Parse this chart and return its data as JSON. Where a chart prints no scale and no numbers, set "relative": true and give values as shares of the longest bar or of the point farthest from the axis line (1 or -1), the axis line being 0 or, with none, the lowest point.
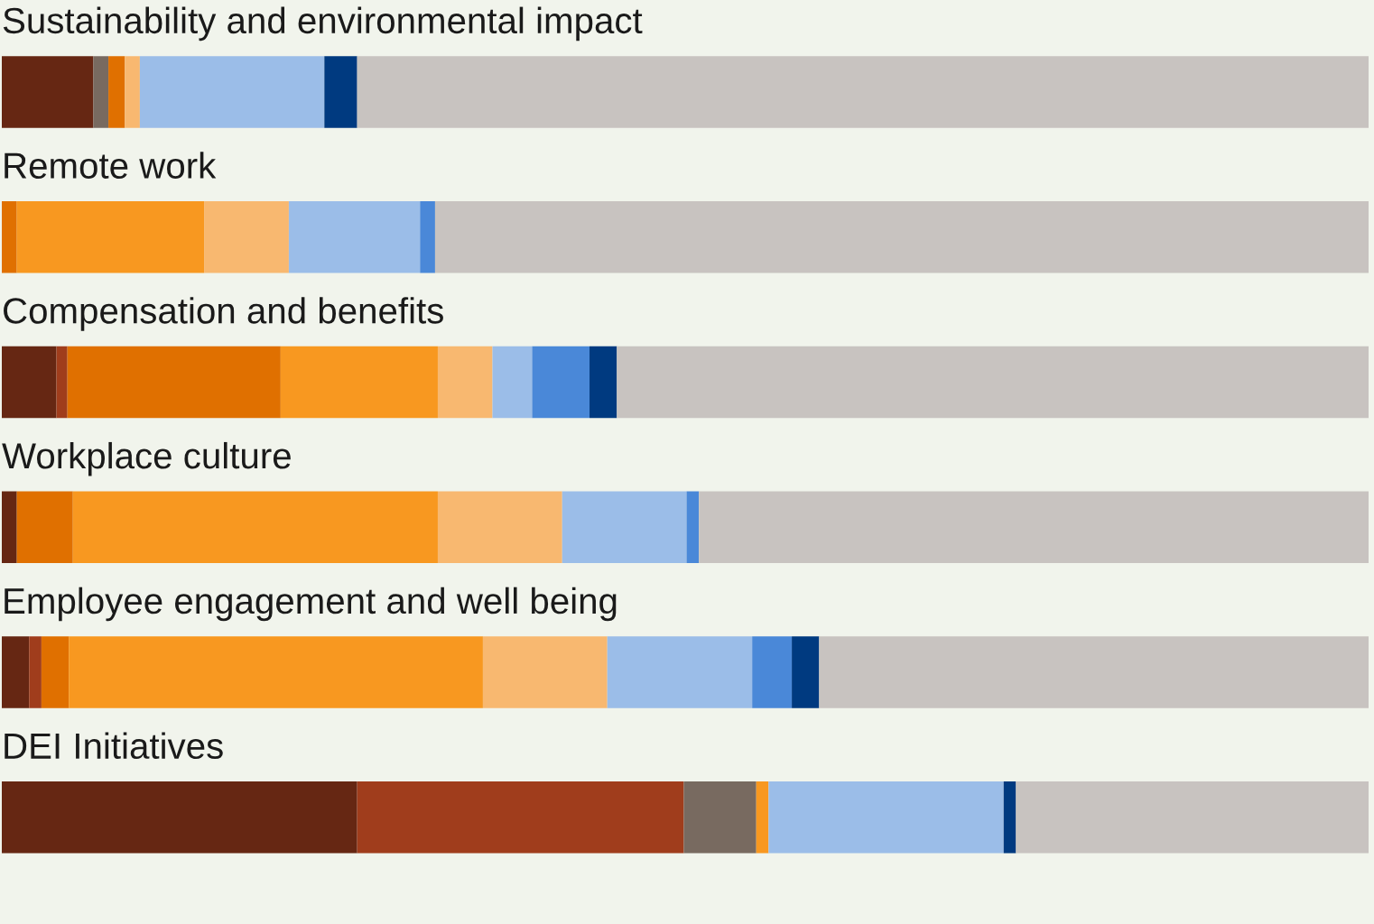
{
  "chart_data": {
    "type": "bar",
    "orientation": "horizontal",
    "stacked": true,
    "relative": true,
    "categories": [
      "Sustainability and environmental impact",
      "Remote work",
      "Compensation and benefits",
      "Workplace culture",
      "Employee engagement and well being",
      "DEI Initiatives"
    ],
    "series": [
      {
        "color": "#662713",
        "values": [
          0.067,
          null,
          0.04,
          0.011,
          0.02,
          0.26
        ]
      },
      {
        "color": "#a03d1c",
        "values": [
          null,
          null,
          0.008,
          null,
          0.009,
          0.239
        ]
      },
      {
        "color": "#786a60",
        "values": [
          0.011,
          null,
          null,
          null,
          null,
          0.053
        ]
      },
      {
        "color": "#e07000",
        "values": [
          0.012,
          0.011,
          0.156,
          0.041,
          0.02,
          null
        ]
      },
      {
        "color": "#f89820",
        "values": [
          null,
          0.137,
          0.115,
          0.267,
          0.303,
          0.009
        ]
      },
      {
        "color": "#f8b870",
        "values": [
          0.011,
          0.062,
          0.04,
          0.091,
          0.091,
          null
        ]
      },
      {
        "color": "#9bbde8",
        "values": [
          0.135,
          0.096,
          0.029,
          0.091,
          0.106,
          0.172
        ]
      },
      {
        "color": "#4a88d8",
        "values": [
          null,
          0.011,
          0.042,
          0.009,
          0.029,
          null
        ]
      },
      {
        "color": "#003a80",
        "values": [
          0.024,
          null,
          0.02,
          null,
          0.02,
          0.009
        ]
      },
      {
        "color": "#c8c3c0",
        "values": [
          0.74,
          0.683,
          0.55,
          0.49,
          0.402,
          0.258
        ]
      }
    ]
  }
}
